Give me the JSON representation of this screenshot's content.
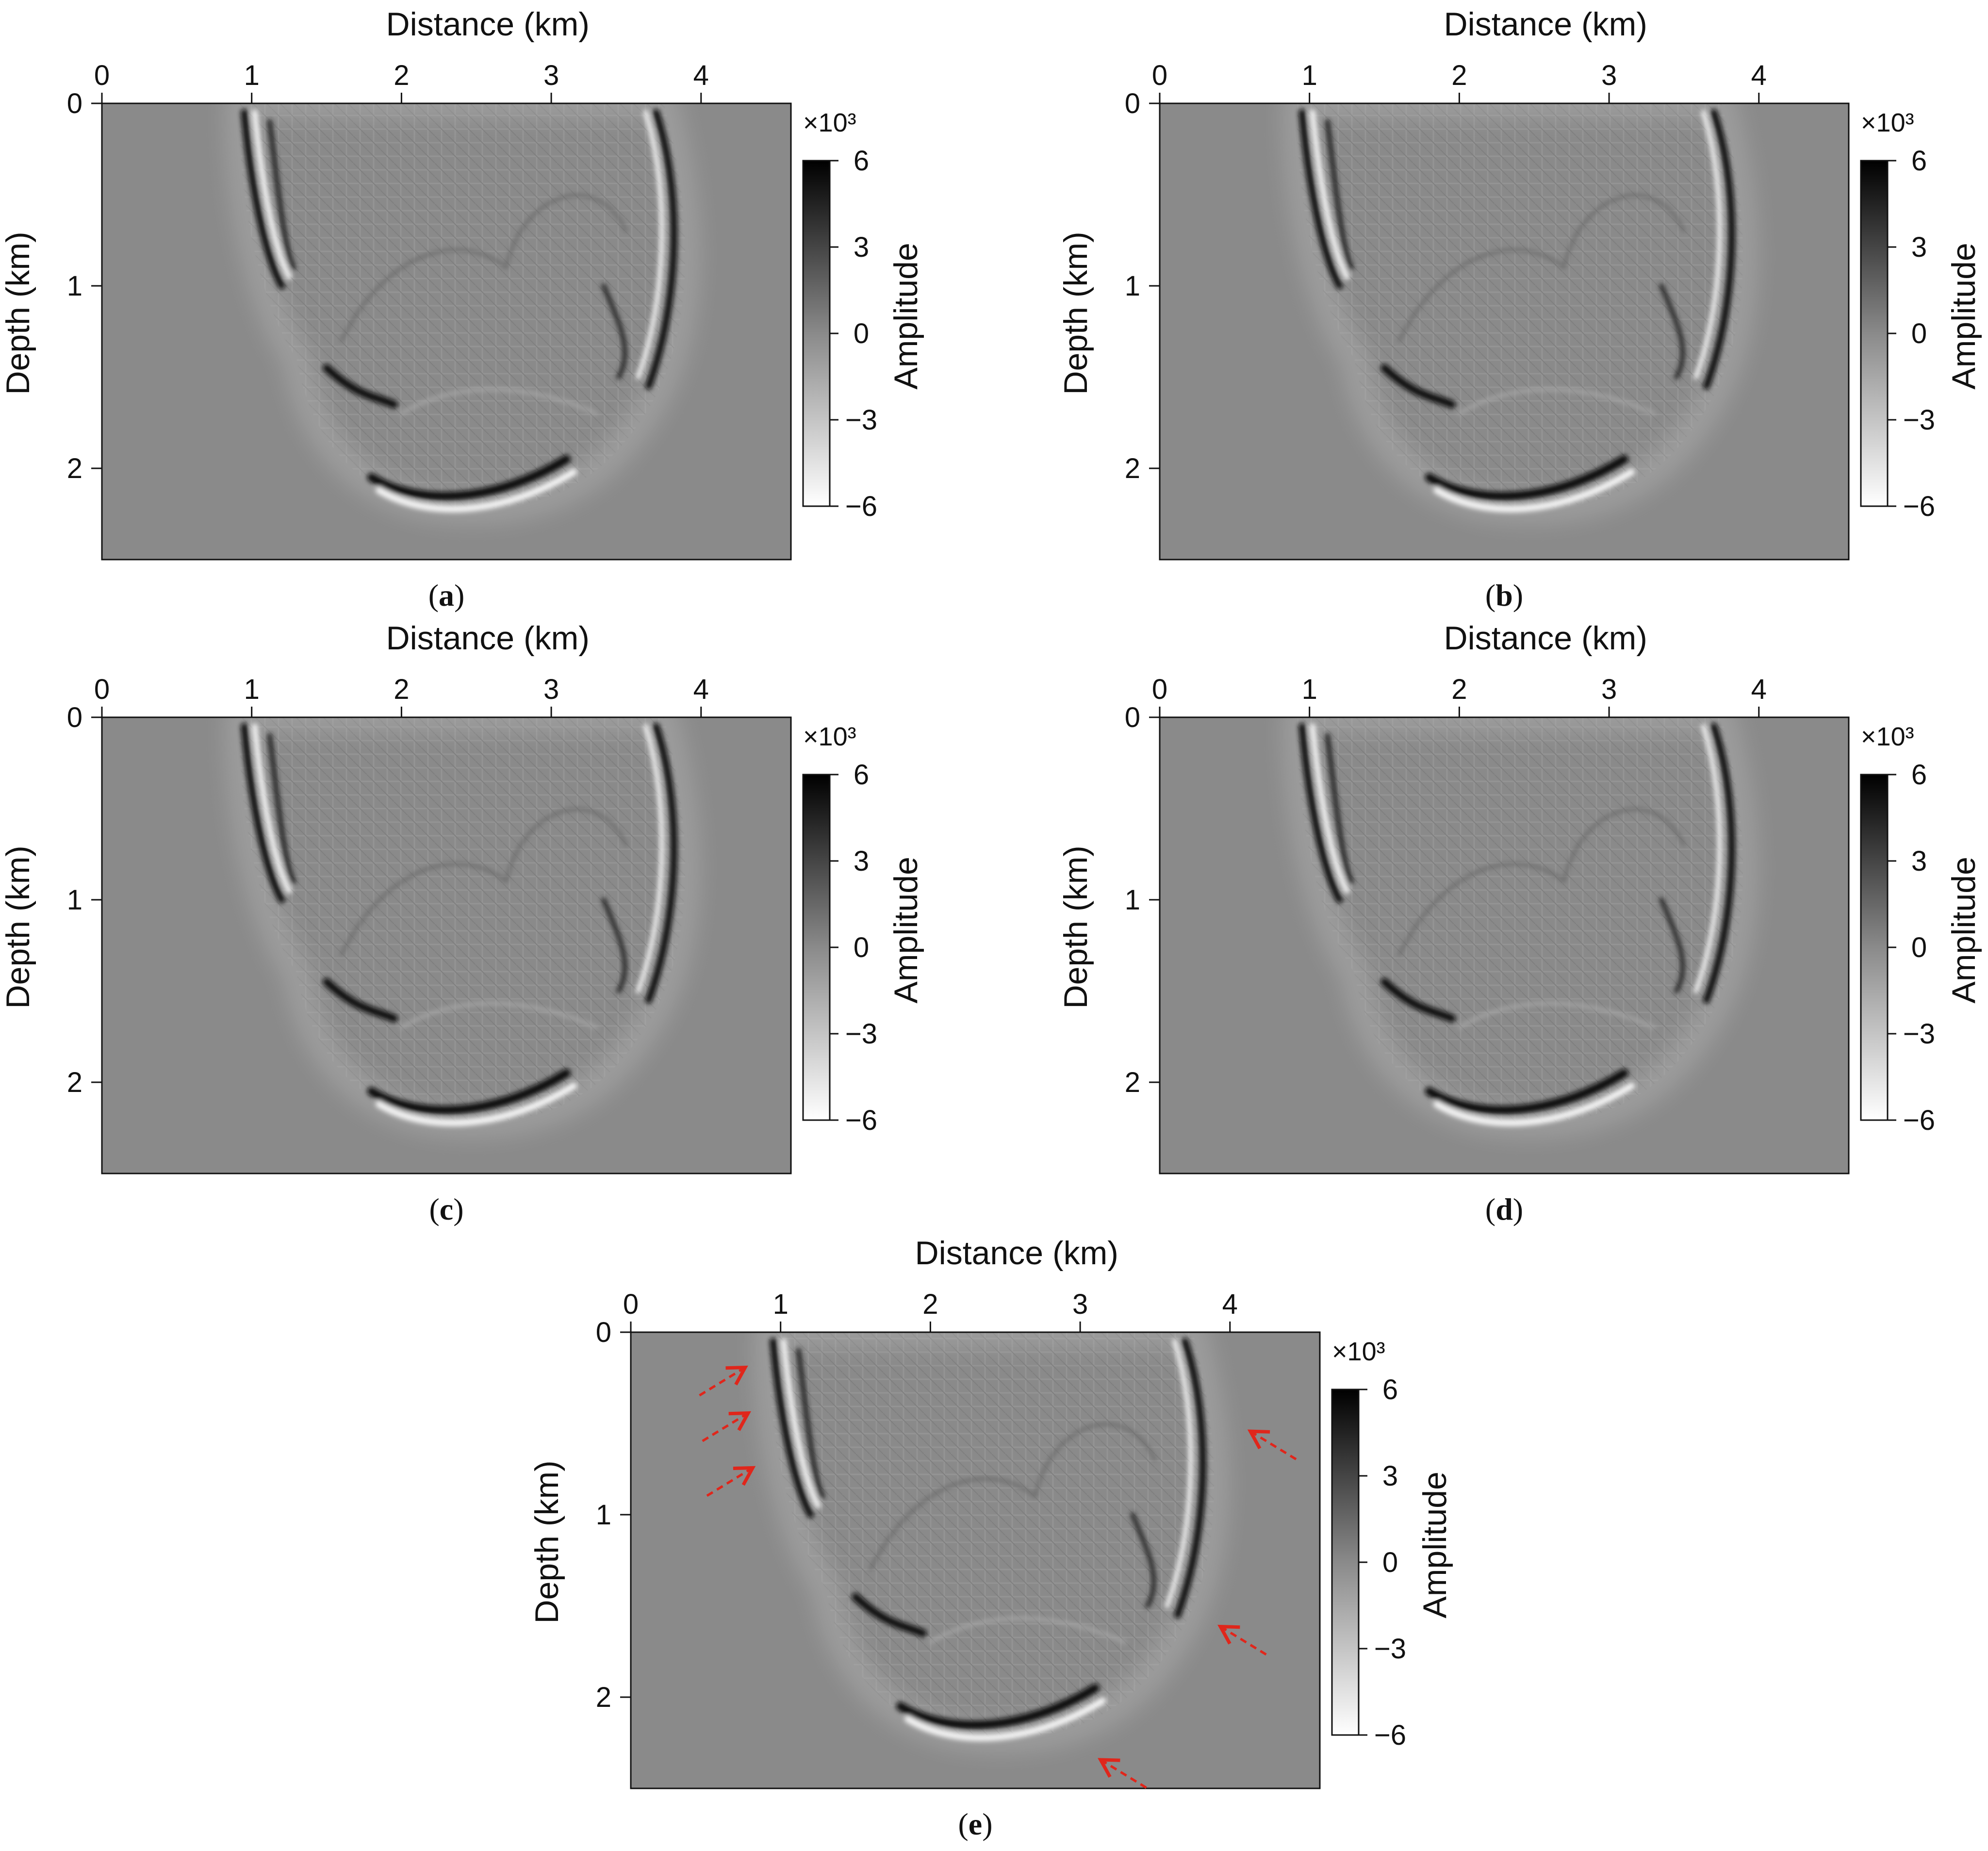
{
  "figure": {
    "panels": [
      {
        "id": "a",
        "caption": "(a)",
        "xlabel": "Distance (km)",
        "ylabel": "Depth (km)",
        "x_ticks": [
          "0",
          "1",
          "2",
          "3",
          "4"
        ],
        "y_ticks": [
          "0",
          "1",
          "2"
        ],
        "xlim": [
          0,
          4.6
        ],
        "ylim": [
          0,
          2.5
        ],
        "colorbar": {
          "label": "Amplitude",
          "multiplier": "×10³",
          "ticks": [
            "6",
            "3",
            "0",
            "−3",
            "−6"
          ],
          "range": [
            -6,
            6
          ]
        },
        "arrows": []
      },
      {
        "id": "b",
        "caption": "(b)",
        "xlabel": "Distance (km)",
        "ylabel": "Depth (km)",
        "x_ticks": [
          "0",
          "1",
          "2",
          "3",
          "4"
        ],
        "y_ticks": [
          "0",
          "1",
          "2"
        ],
        "xlim": [
          0,
          4.6
        ],
        "ylim": [
          0,
          2.5
        ],
        "colorbar": {
          "label": "Amplitude",
          "multiplier": "×10³",
          "ticks": [
            "6",
            "3",
            "0",
            "−3",
            "−6"
          ],
          "range": [
            -6,
            6
          ]
        },
        "arrows": []
      },
      {
        "id": "c",
        "caption": "(c)",
        "xlabel": "Distance (km)",
        "ylabel": "Depth (km)",
        "x_ticks": [
          "0",
          "1",
          "2",
          "3",
          "4"
        ],
        "y_ticks": [
          "0",
          "1",
          "2"
        ],
        "xlim": [
          0,
          4.6
        ],
        "ylim": [
          0,
          2.5
        ],
        "colorbar": {
          "label": "Amplitude",
          "multiplier": "×10³",
          "ticks": [
            "6",
            "3",
            "0",
            "−3",
            "−6"
          ],
          "range": [
            -6,
            6
          ]
        },
        "arrows": []
      },
      {
        "id": "d",
        "caption": "(d)",
        "xlabel": "Distance (km)",
        "ylabel": "Depth (km)",
        "x_ticks": [
          "0",
          "1",
          "2",
          "3",
          "4"
        ],
        "y_ticks": [
          "0",
          "1",
          "2"
        ],
        "xlim": [
          0,
          4.6
        ],
        "ylim": [
          0,
          2.5
        ],
        "colorbar": {
          "label": "Amplitude",
          "multiplier": "×10³",
          "ticks": [
            "6",
            "3",
            "0",
            "−3",
            "−6"
          ],
          "range": [
            -6,
            6
          ]
        },
        "arrows": []
      },
      {
        "id": "e",
        "caption": "(e)",
        "xlabel": "Distance (km)",
        "ylabel": "Depth (km)",
        "x_ticks": [
          "0",
          "1",
          "2",
          "3",
          "4"
        ],
        "y_ticks": [
          "0",
          "1",
          "2"
        ],
        "xlim": [
          0,
          4.6
        ],
        "ylim": [
          0,
          2.5
        ],
        "colorbar": {
          "label": "Amplitude",
          "multiplier": "×10³",
          "ticks": [
            "6",
            "3",
            "0",
            "−3",
            "−6"
          ],
          "range": [
            -6,
            6
          ]
        },
        "arrows": [
          {
            "x": 0.75,
            "y": 0.2,
            "dir": "up-right"
          },
          {
            "x": 0.77,
            "y": 0.45,
            "dir": "up-right"
          },
          {
            "x": 0.8,
            "y": 0.75,
            "dir": "up-right"
          },
          {
            "x": 4.15,
            "y": 0.55,
            "dir": "up-left"
          },
          {
            "x": 3.95,
            "y": 1.62,
            "dir": "up-left"
          },
          {
            "x": 3.15,
            "y": 2.35,
            "dir": "up-left"
          }
        ]
      }
    ],
    "colors": {
      "background_gray": "#8a8a8a",
      "arrow": "#e0261b",
      "axis": "#111111"
    }
  }
}
